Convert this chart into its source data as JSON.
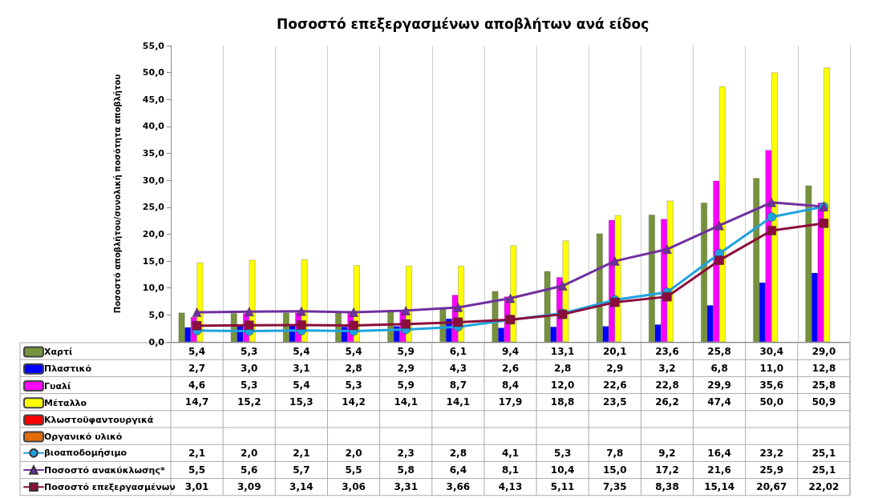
{
  "chart_data": {
    "type": "bar",
    "title": "Ποσοστό επεξεργασμένων αποβλήτων ανά είδος",
    "ylabel": "Ποσοστό αποβλήτου/συνολική ποσότητα αποβλήτου",
    "categories": [
      null,
      null,
      null,
      null,
      null,
      null,
      null,
      null,
      null,
      null,
      null,
      null,
      null
    ],
    "ylim": [
      0,
      55
    ],
    "yticks": [
      {
        "value": 0,
        "label": "0,0"
      },
      {
        "value": 5,
        "label": "5,0"
      },
      {
        "value": 10,
        "label": "10,0"
      },
      {
        "value": 15,
        "label": "15,0"
      },
      {
        "value": 20,
        "label": "20,0"
      },
      {
        "value": 25,
        "label": "25,0"
      },
      {
        "value": 30,
        "label": "30,0"
      },
      {
        "value": 35,
        "label": "35,0"
      },
      {
        "value": 40,
        "label": "40,0"
      },
      {
        "value": 45,
        "label": "45,0"
      },
      {
        "value": 50,
        "label": "50,0"
      },
      {
        "value": 55,
        "label": "55,0"
      }
    ],
    "grid": "x",
    "legend": "bottom left",
    "series": [
      {
        "name": "Χαρτί",
        "color": "#76923c",
        "values": [
          5.4,
          5.3,
          5.4,
          5.4,
          5.9,
          6.1,
          9.4,
          13.1,
          20.1,
          23.6,
          25.8,
          30.4,
          29.0
        ],
        "value_labels": [
          "5,4",
          "5,3",
          "5,4",
          "5,4",
          "5,9",
          "6,1",
          "9,4",
          "13,1",
          "20,1",
          "23,6",
          "25,8",
          "30,4",
          "29,0"
        ]
      },
      {
        "name": "Πλαστικό",
        "color": "#0000ff",
        "values": [
          2.7,
          3.0,
          3.1,
          2.8,
          2.9,
          4.3,
          2.6,
          2.8,
          2.9,
          3.2,
          6.8,
          11.0,
          12.8
        ],
        "value_labels": [
          "2,7",
          "3,0",
          "3,1",
          "2,8",
          "2,9",
          "4,3",
          "2,6",
          "2,8",
          "2,9",
          "3,2",
          "6,8",
          "11,0",
          "12,8"
        ]
      },
      {
        "name": "Γυαλί",
        "color": "#ff00ff",
        "values": [
          4.6,
          5.3,
          5.4,
          5.3,
          5.9,
          8.7,
          8.4,
          12.0,
          22.6,
          22.8,
          29.9,
          35.6,
          25.8
        ],
        "value_labels": [
          "4,6",
          "5,3",
          "5,4",
          "5,3",
          "5,9",
          "8,7",
          "8,4",
          "12,0",
          "22,6",
          "22,8",
          "29,9",
          "35,6",
          "25,8"
        ]
      },
      {
        "name": "Μέταλλο",
        "color": "#ffff00",
        "values": [
          14.7,
          15.2,
          15.3,
          14.2,
          14.1,
          14.1,
          17.9,
          18.8,
          23.5,
          26.2,
          47.4,
          50.0,
          50.9
        ],
        "value_labels": [
          "14,7",
          "15,2",
          "15,3",
          "14,2",
          "14,1",
          "14,1",
          "17,9",
          "18,8",
          "23,5",
          "26,2",
          "47,4",
          "50,0",
          "50,9"
        ]
      },
      {
        "name": "Κλωστοϋφαντουργικά",
        "color": "#ff0000",
        "values": [
          null,
          null,
          null,
          null,
          null,
          null,
          null,
          null,
          null,
          null,
          null,
          null,
          null
        ]
      },
      {
        "name": "Οργανικό υλικό",
        "color": "#e46c0a",
        "values": [
          null,
          null,
          null,
          null,
          null,
          null,
          null,
          null,
          null,
          null,
          null,
          null,
          null
        ]
      },
      {
        "name": "βιοαποδομήσιμο",
        "type": "line",
        "marker": "circle",
        "color": "#1fa2e0",
        "values": [
          2.1,
          2.0,
          2.1,
          2.0,
          2.3,
          2.8,
          4.1,
          5.3,
          7.8,
          9.2,
          16.4,
          23.2,
          25.1
        ],
        "value_labels": [
          "2,1",
          "2,0",
          "2,1",
          "2,0",
          "2,3",
          "2,8",
          "4,1",
          "5,3",
          "7,8",
          "9,2",
          "16,4",
          "23,2",
          "25,1"
        ]
      },
      {
        "name": "Ποσοστό ανακύκλωσης*",
        "type": "line",
        "marker": "triangle",
        "color": "#7030a0",
        "values": [
          5.5,
          5.6,
          5.7,
          5.5,
          5.8,
          6.4,
          8.1,
          10.4,
          15.0,
          17.2,
          21.6,
          25.9,
          25.1
        ],
        "value_labels": [
          "5,5",
          "5,6",
          "5,7",
          "5,5",
          "5,8",
          "6,4",
          "8,1",
          "10,4",
          "15,0",
          "17,2",
          "21,6",
          "25,9",
          "25,1"
        ]
      },
      {
        "name": "Ποσοστό επεξεργασμένων",
        "type": "line",
        "marker": "square",
        "color": "#8c0d3c",
        "values": [
          3.01,
          3.09,
          3.14,
          3.06,
          3.31,
          3.66,
          4.13,
          5.11,
          7.35,
          8.38,
          15.14,
          20.67,
          22.02
        ],
        "value_labels": [
          "3,01",
          "3,09",
          "3,14",
          "3,06",
          "3,31",
          "3,66",
          "4,13",
          "5,11",
          "7,35",
          "8,38",
          "15,14",
          "20,67",
          "22,02"
        ]
      }
    ]
  }
}
